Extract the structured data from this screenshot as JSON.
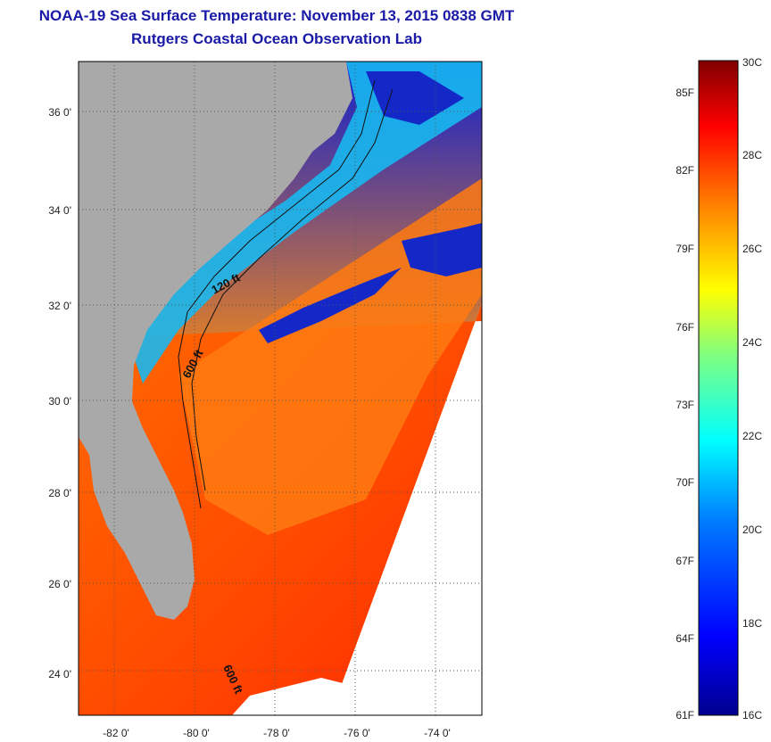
{
  "header": {
    "title": "NOAA-19 Sea Surface Temperature:  November 13, 2015 0838 GMT",
    "subtitle": "Rutgers Coastal Ocean Observation Lab"
  },
  "map": {
    "lat_range": [
      23,
      37
    ],
    "lon_range": [
      -83,
      -73
    ],
    "lat_ticks": [
      "24 0'",
      "26 0'",
      "28 0'",
      "30 0'",
      "32 0'",
      "34 0'",
      "36 0'"
    ],
    "lon_ticks": [
      "-82 0'",
      "-80 0'",
      "-78 0'",
      "-76 0'",
      "-74 0'"
    ],
    "contour_labels": [
      "120 ft",
      "600 ft",
      "600 ft"
    ],
    "colors": {
      "land": "#a9a9a9",
      "ocean_warm": "#ff5a00",
      "ocean_cool": "#1e3cff",
      "grid": "#555555"
    }
  },
  "colorbar": {
    "celsius_labels": [
      "30C",
      "28C",
      "26C",
      "24C",
      "22C",
      "20C",
      "18C",
      "16C"
    ],
    "fahrenheit_labels": [
      "85F",
      "82F",
      "79F",
      "76F",
      "73F",
      "70F",
      "67F",
      "64F",
      "61F"
    ],
    "min_c": 16,
    "max_c": 30
  }
}
